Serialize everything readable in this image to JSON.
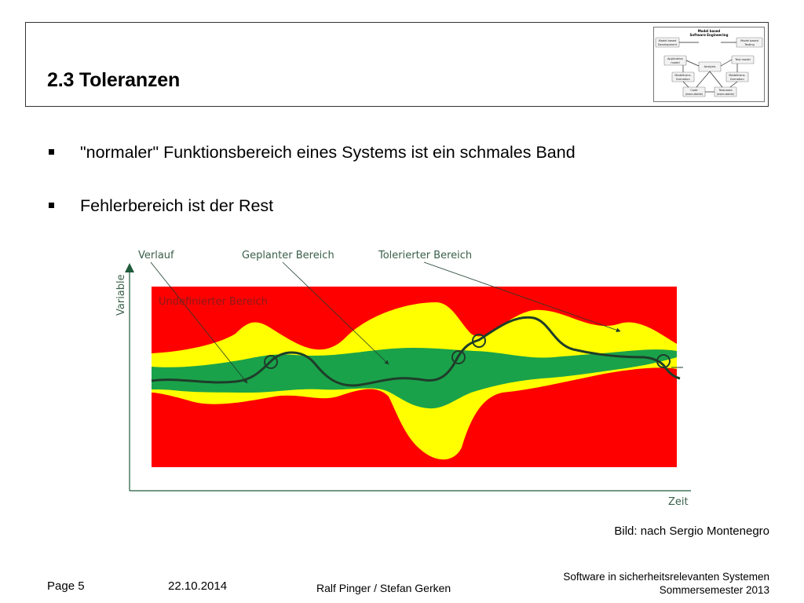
{
  "slide": {
    "title": "2.3 Toleranzen",
    "bullets": [
      "\"normaler\" Funktionsbereich eines Systems ist ein schmales Band",
      "Fehlerbereich ist der Rest"
    ]
  },
  "mini_diagram": {
    "title_line1": "Model based",
    "title_line2": "Software Engineering",
    "nodes": {
      "dev": [
        "Model based",
        "Development"
      ],
      "test": [
        "Model based",
        "Testing"
      ],
      "app": [
        "Application",
        "model"
      ],
      "analysis": [
        "Analysis"
      ],
      "testmodel": [
        "Test model"
      ],
      "mt1": [
        "Modeltrans-",
        "formation"
      ],
      "mt2": [
        "Modeltrans-",
        "formation"
      ],
      "code": [
        "Code",
        "(executable)"
      ],
      "testcases": [
        "Testcases",
        "(executable)"
      ]
    }
  },
  "figure": {
    "labels": {
      "verlauf": "Verlauf",
      "geplant": "Geplanter Bereich",
      "toleriert": "Tolerierter Bereich",
      "undefiniert": "Undefinierter Bereich",
      "y_axis": "Variable",
      "x_axis": "Zeit"
    },
    "colors": {
      "undefined_region": "#ff0000",
      "tolerated_band": "#ffff00",
      "planned_band": "#1aa24a",
      "trajectory": "#1f3d2a",
      "axis": "#1f5a3a",
      "label_text": "#3a5f4a"
    }
  },
  "credit": "Bild: nach Sergio Montenegro",
  "footer": {
    "page": "Page 5",
    "date": "22.10.2014",
    "authors": "Ralf Pinger / Stefan Gerken",
    "course_line1": "Software in sicherheitsrelevanten Systemen",
    "course_line2": "Sommersemester 2013"
  }
}
